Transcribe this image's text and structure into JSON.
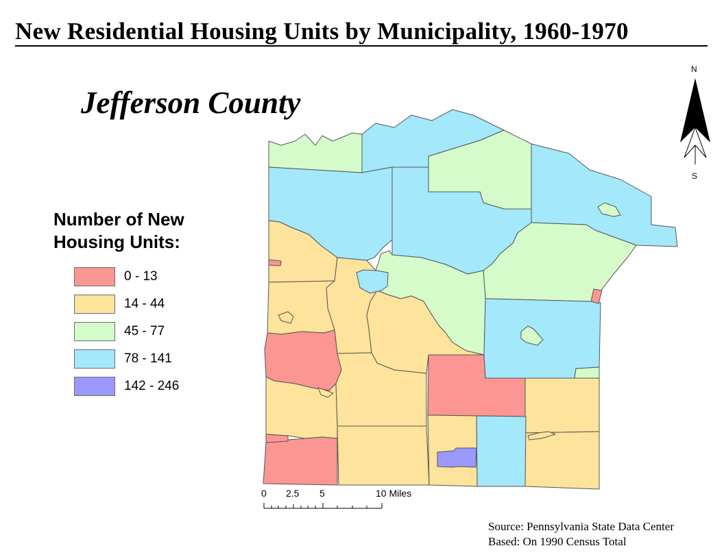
{
  "title": "New Residential Housing Units by Municipality, 1960-1970",
  "county_label": "Jefferson County",
  "legend": {
    "title_line1": "Number of New",
    "title_line2": "Housing Units:",
    "items": [
      {
        "label": "0 - 13",
        "color": "#fb9692"
      },
      {
        "label": "14 - 44",
        "color": "#fde39b"
      },
      {
        "label": "45 - 77",
        "color": "#d5fbca"
      },
      {
        "label": "78 - 141",
        "color": "#a3e8fb"
      },
      {
        "label": "142 - 246",
        "color": "#9b99fb"
      }
    ]
  },
  "north_arrow": {
    "n": "N",
    "s": "S",
    "icon": "north-arrow-icon"
  },
  "scale_bar": {
    "ticks": [
      "0",
      "2.5",
      "5"
    ],
    "end_label": "10 Miles"
  },
  "source": {
    "line1": "Source: Pennsylvania State Data Center",
    "line2": "Based: On 1990 Census Total"
  }
}
